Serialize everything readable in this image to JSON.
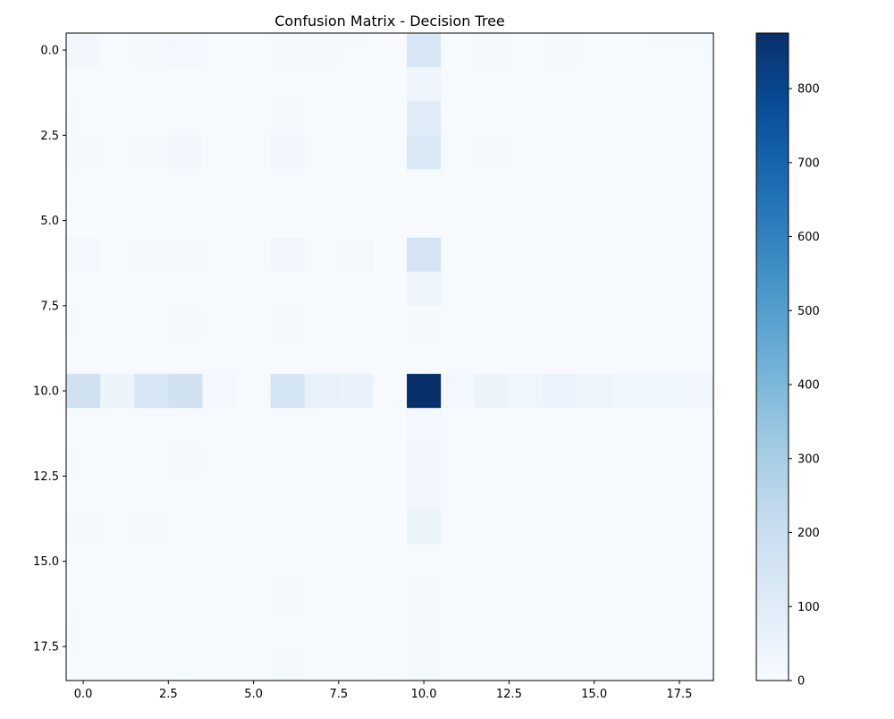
{
  "chart_data": {
    "type": "heatmap",
    "title": "Confusion Matrix - Decision Tree",
    "xlabel": "",
    "ylabel": "",
    "colormap": "Blues",
    "x_extent": [
      -0.5,
      18.5
    ],
    "y_extent": [
      -0.5,
      18.5
    ],
    "x_ticks": [
      0.0,
      2.5,
      5.0,
      7.5,
      10.0,
      12.5,
      15.0,
      17.5
    ],
    "x_tick_labels": [
      "0.0",
      "2.5",
      "5.0",
      "7.5",
      "10.0",
      "12.5",
      "15.0",
      "17.5"
    ],
    "y_ticks": [
      0.0,
      2.5,
      5.0,
      7.5,
      10.0,
      12.5,
      15.0,
      17.5
    ],
    "y_tick_labels": [
      "0.0",
      "2.5",
      "5.0",
      "7.5",
      "10.0",
      "12.5",
      "15.0",
      "17.5"
    ],
    "colorbar_range": [
      0,
      875
    ],
    "colorbar_ticks": [
      0,
      100,
      200,
      300,
      400,
      500,
      600,
      700,
      800
    ],
    "colorbar_tick_labels": [
      "0",
      "100",
      "200",
      "300",
      "400",
      "500",
      "600",
      "700",
      "800"
    ],
    "matrix": [
      [
        25,
        5,
        15,
        20,
        5,
        5,
        15,
        15,
        10,
        0,
        140,
        5,
        15,
        5,
        15,
        5,
        5,
        10,
        10
      ],
      [
        5,
        5,
        5,
        5,
        5,
        5,
        5,
        5,
        5,
        0,
        40,
        5,
        5,
        5,
        5,
        5,
        5,
        5,
        5
      ],
      [
        10,
        10,
        10,
        10,
        5,
        5,
        15,
        5,
        10,
        0,
        100,
        5,
        10,
        5,
        10,
        5,
        5,
        5,
        5
      ],
      [
        15,
        5,
        15,
        25,
        10,
        5,
        25,
        10,
        10,
        0,
        130,
        5,
        15,
        10,
        10,
        10,
        5,
        5,
        5
      ],
      [
        5,
        5,
        5,
        5,
        5,
        5,
        5,
        5,
        5,
        0,
        10,
        5,
        5,
        5,
        5,
        5,
        5,
        5,
        5
      ],
      [
        0,
        0,
        0,
        0,
        0,
        0,
        0,
        0,
        0,
        0,
        0,
        0,
        0,
        0,
        0,
        0,
        0,
        0,
        0
      ],
      [
        20,
        10,
        15,
        15,
        5,
        5,
        25,
        10,
        15,
        0,
        155,
        5,
        10,
        5,
        10,
        5,
        10,
        5,
        5
      ],
      [
        5,
        5,
        5,
        5,
        5,
        5,
        5,
        5,
        5,
        0,
        40,
        10,
        5,
        5,
        5,
        5,
        5,
        5,
        5
      ],
      [
        10,
        5,
        5,
        15,
        5,
        5,
        15,
        10,
        5,
        0,
        15,
        5,
        5,
        5,
        5,
        5,
        5,
        5,
        5
      ],
      [
        5,
        5,
        5,
        5,
        5,
        5,
        5,
        5,
        5,
        0,
        5,
        5,
        5,
        5,
        5,
        5,
        5,
        5,
        5
      ],
      [
        175,
        50,
        140,
        175,
        20,
        5,
        160,
        65,
        60,
        5,
        875,
        20,
        50,
        35,
        55,
        40,
        30,
        30,
        25
      ],
      [
        5,
        5,
        5,
        5,
        5,
        5,
        10,
        5,
        5,
        0,
        20,
        5,
        5,
        5,
        5,
        5,
        5,
        5,
        5
      ],
      [
        10,
        5,
        10,
        15,
        5,
        5,
        5,
        5,
        5,
        0,
        25,
        5,
        5,
        5,
        5,
        5,
        5,
        5,
        5
      ],
      [
        5,
        5,
        5,
        5,
        5,
        5,
        10,
        5,
        5,
        0,
        25,
        5,
        5,
        5,
        5,
        5,
        5,
        5,
        5
      ],
      [
        15,
        5,
        15,
        10,
        5,
        5,
        10,
        5,
        5,
        0,
        50,
        5,
        5,
        5,
        5,
        5,
        5,
        5,
        5
      ],
      [
        5,
        5,
        5,
        5,
        5,
        5,
        5,
        5,
        5,
        0,
        10,
        5,
        5,
        5,
        5,
        5,
        5,
        5,
        5
      ],
      [
        5,
        5,
        5,
        10,
        5,
        5,
        15,
        5,
        5,
        0,
        15,
        5,
        5,
        5,
        5,
        5,
        5,
        5,
        5
      ],
      [
        10,
        5,
        5,
        5,
        5,
        5,
        5,
        5,
        5,
        0,
        15,
        5,
        5,
        5,
        5,
        5,
        5,
        5,
        5
      ],
      [
        5,
        5,
        5,
        10,
        5,
        5,
        15,
        5,
        5,
        0,
        15,
        5,
        5,
        5,
        5,
        5,
        5,
        5,
        5
      ]
    ]
  }
}
